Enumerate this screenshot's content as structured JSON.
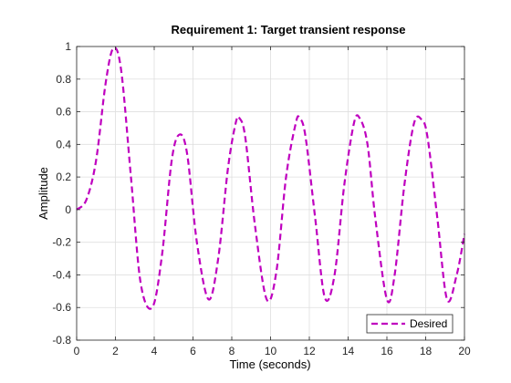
{
  "chart_data": {
    "type": "line",
    "title": "Requirement 1: Target transient response",
    "xlabel": "Time (seconds)",
    "ylabel": "Amplitude",
    "xlim": [
      0,
      20
    ],
    "ylim": [
      -0.8,
      1
    ],
    "xticks": [
      0,
      2,
      4,
      6,
      8,
      10,
      12,
      14,
      16,
      18,
      20
    ],
    "yticks": [
      -0.8,
      -0.6,
      -0.4,
      -0.2,
      0,
      0.2,
      0.4,
      0.6,
      0.8,
      1
    ],
    "grid": true,
    "legend_position": "bottom-right",
    "series": [
      {
        "name": "Desired",
        "color": "#BF00BF",
        "line_style": "dashed",
        "x": [
          0,
          0.5,
          1.0,
          1.5,
          1.9,
          2.3,
          2.8,
          3.3,
          3.9,
          4.4,
          4.9,
          5.3,
          5.7,
          6.2,
          6.8,
          7.3,
          7.8,
          8.2,
          8.4,
          8.7,
          9.2,
          9.8,
          10.3,
          10.8,
          11.3,
          11.5,
          11.8,
          12.3,
          12.8,
          13.3,
          13.8,
          14.3,
          14.6,
          15.0,
          15.4,
          16.0,
          16.4,
          16.9,
          17.4,
          17.8,
          18.1,
          18.6,
          19.1,
          19.6,
          20.0
        ],
        "y": [
          0,
          0.06,
          0.3,
          0.78,
          0.99,
          0.85,
          0.2,
          -0.45,
          -0.6,
          -0.28,
          0.3,
          0.46,
          0.34,
          -0.2,
          -0.55,
          -0.3,
          0.25,
          0.53,
          0.56,
          0.44,
          -0.1,
          -0.55,
          -0.38,
          0.2,
          0.53,
          0.56,
          0.45,
          -0.05,
          -0.54,
          -0.4,
          0.15,
          0.53,
          0.56,
          0.4,
          -0.05,
          -0.55,
          -0.4,
          0.15,
          0.53,
          0.55,
          0.44,
          -0.05,
          -0.55,
          -0.4,
          -0.15
        ]
      }
    ]
  }
}
